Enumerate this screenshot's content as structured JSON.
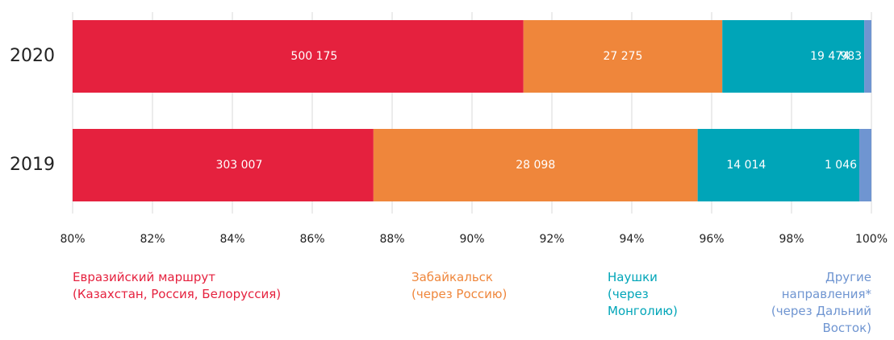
{
  "chart_data": {
    "type": "bar",
    "orientation": "horizontal",
    "stacked": "percent",
    "categories": [
      "2020",
      "2019"
    ],
    "series": [
      {
        "name": "Евразийский маршрут\n(Казахстан, Россия, Белоруссия)",
        "color": "#e5213e",
        "values": [
          500175,
          303007
        ],
        "value_labels": [
          "500 175",
          "303 007"
        ]
      },
      {
        "name": "Забайкальск\n(через Россию)",
        "color": "#ef863b",
        "values": [
          27275,
          28098
        ],
        "value_labels": [
          "27 275",
          "28 098"
        ]
      },
      {
        "name": "Наушки\n(через\nМонголию)",
        "color": "#00a5b8",
        "values": [
          19474,
          14014
        ],
        "value_labels": [
          "19 474",
          "14 014"
        ]
      },
      {
        "name": "Другие\nнаправления*\n(через Дальний\nВосток)",
        "color": "#6f95d1",
        "values": [
          983,
          1046
        ],
        "value_labels": [
          "983",
          "1 046"
        ]
      }
    ],
    "xlim": [
      80,
      100
    ],
    "xticks": [
      {
        "value": 80,
        "label": "80%"
      },
      {
        "value": 82,
        "label": "82%"
      },
      {
        "value": 84,
        "label": "84%"
      },
      {
        "value": 86,
        "label": "86%"
      },
      {
        "value": 88,
        "label": "88%"
      },
      {
        "value": 90,
        "label": "90%"
      },
      {
        "value": 92,
        "label": "92%"
      },
      {
        "value": 94,
        "label": "94%"
      },
      {
        "value": 96,
        "label": "96%"
      },
      {
        "value": 98,
        "label": "98%"
      },
      {
        "value": 100,
        "label": "100%"
      }
    ],
    "grid": true
  }
}
